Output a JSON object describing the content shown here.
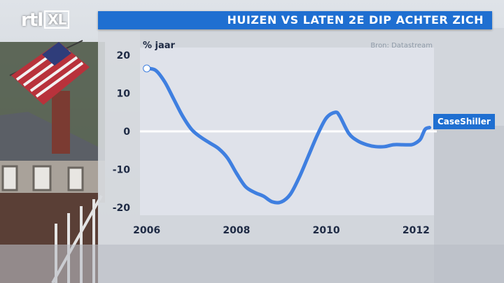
{
  "broadcaster": {
    "logo_text": "rtl",
    "logo_badge": "XL"
  },
  "header": {
    "title": "HUIZEN VS LATEN 2E DIP ACHTER ZICH"
  },
  "source": "Bron: Datastream",
  "colors": {
    "accent": "#1f6fd1",
    "line": "#3f7fe0",
    "zero_line": "#ffffff",
    "panel": "#dfe3ea"
  },
  "chart_data": {
    "type": "line",
    "title": "HUIZEN VS LATEN 2E DIP ACHTER ZICH",
    "ylabel": "% jaar",
    "xlabel": "",
    "ylim": [
      -22,
      22
    ],
    "xlim": [
      2005.85,
      2012.4
    ],
    "x_ticks": [
      "2006",
      "2008",
      "2010",
      "2012"
    ],
    "y_ticks": [
      "20",
      "10",
      "0",
      "-10",
      "-20"
    ],
    "grid": false,
    "reference_line": 0,
    "series": [
      {
        "name": "CaseShiller",
        "x": [
          2006.0,
          2006.2,
          2006.4,
          2006.6,
          2006.8,
          2007.0,
          2007.2,
          2007.4,
          2007.6,
          2007.8,
          2008.0,
          2008.2,
          2008.4,
          2008.6,
          2008.8,
          2009.0,
          2009.2,
          2009.4,
          2009.6,
          2009.8,
          2010.0,
          2010.2,
          2010.3,
          2010.5,
          2010.7,
          2010.9,
          2011.1,
          2011.3,
          2011.5,
          2011.7,
          2011.9,
          2012.0,
          2012.1,
          2012.2,
          2012.3
        ],
        "values": [
          16.5,
          16.0,
          13.0,
          8.5,
          4.0,
          0.5,
          -1.5,
          -3.0,
          -4.5,
          -7.0,
          -11.0,
          -14.5,
          -16.0,
          -17.0,
          -18.5,
          -18.5,
          -16.5,
          -12.0,
          -6.5,
          -1.0,
          3.5,
          5.0,
          4.0,
          -0.5,
          -2.5,
          -3.5,
          -4.0,
          -4.0,
          -3.5,
          -3.5,
          -3.5,
          -3.0,
          -2.0,
          0.5,
          1.0
        ]
      }
    ]
  }
}
